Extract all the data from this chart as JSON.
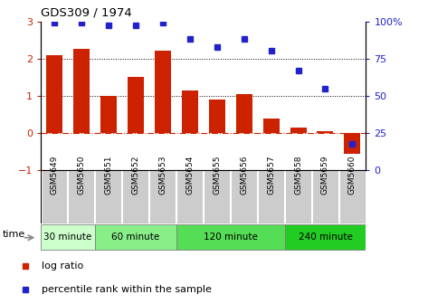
{
  "title": "GDS309 / 1974",
  "samples": [
    "GSM5649",
    "GSM5650",
    "GSM5651",
    "GSM5652",
    "GSM5653",
    "GSM5654",
    "GSM5655",
    "GSM5656",
    "GSM5657",
    "GSM5658",
    "GSM5659",
    "GSM5660"
  ],
  "log_ratio": [
    2.1,
    2.25,
    1.0,
    1.5,
    2.2,
    1.15,
    0.9,
    1.05,
    0.4,
    0.15,
    0.04,
    -0.55
  ],
  "percentile": [
    99,
    99,
    97,
    97,
    99,
    88,
    83,
    88,
    80,
    67,
    55,
    18
  ],
  "bar_color": "#cc2200",
  "dot_color": "#2222cc",
  "ylim_left": [
    -1,
    3
  ],
  "ylim_right": [
    0,
    100
  ],
  "yticks_left": [
    -1,
    0,
    1,
    2,
    3
  ],
  "yticks_right": [
    0,
    25,
    50,
    75,
    100
  ],
  "groups": [
    {
      "label": "30 minute",
      "start": 0,
      "end": 2,
      "color": "#ccffcc"
    },
    {
      "label": "60 minute",
      "start": 2,
      "end": 5,
      "color": "#88ee88"
    },
    {
      "label": "120 minute",
      "start": 5,
      "end": 9,
      "color": "#55dd55"
    },
    {
      "label": "240 minute",
      "start": 9,
      "end": 12,
      "color": "#22cc22"
    }
  ],
  "time_label": "time",
  "legend_log": "log ratio",
  "legend_pct": "percentile rank within the sample",
  "dotted_lines": [
    1,
    2
  ],
  "zero_line_color": "#cc2200",
  "background_color": "#ffffff",
  "gray_box_color": "#cccccc",
  "right_tick_pct_label": "100%"
}
